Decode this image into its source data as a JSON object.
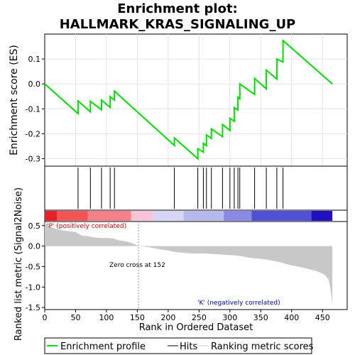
{
  "chart_data": {
    "type": "line",
    "title_line1": "Enrichment plot:",
    "title_line2": "HALLMARK_KRAS_SIGNALING_UP",
    "es_panel": {
      "ylabel": "Enrichment score (ES)",
      "ylim": [
        -0.33,
        0.2
      ],
      "yticks": [
        0.1,
        0.0,
        -0.1,
        -0.2,
        -0.3
      ],
      "ytick_labels": [
        "0.1",
        "0.0",
        "-0.1",
        "-0.2",
        "-0.3"
      ],
      "color": "#00e000",
      "grid": true,
      "x": [
        0,
        54,
        54,
        74,
        74,
        92,
        92,
        106,
        106,
        113,
        113,
        210,
        210,
        248,
        248,
        257,
        257,
        262,
        262,
        270,
        270,
        288,
        288,
        300,
        300,
        307,
        307,
        313,
        313,
        316,
        316,
        340,
        340,
        359,
        359,
        376,
        376,
        386,
        386,
        466
      ],
      "y": [
        0.0,
        -0.119,
        -0.068,
        -0.112,
        -0.07,
        -0.104,
        -0.065,
        -0.095,
        -0.051,
        -0.065,
        -0.029,
        -0.247,
        -0.217,
        -0.3,
        -0.26,
        -0.274,
        -0.238,
        -0.248,
        -0.205,
        -0.219,
        -0.18,
        -0.212,
        -0.163,
        -0.187,
        -0.138,
        -0.15,
        -0.095,
        -0.105,
        -0.053,
        -0.06,
        0.0,
        -0.042,
        0.022,
        -0.02,
        0.055,
        0.02,
        0.1,
        0.088,
        0.174,
        0.0
      ]
    },
    "hits": [
      54,
      74,
      92,
      106,
      113,
      210,
      248,
      257,
      262,
      270,
      288,
      300,
      307,
      313,
      316,
      340,
      359,
      376,
      386
    ],
    "heatmap_bands": [
      {
        "x0": 0,
        "x1": 20,
        "color": "#e8202a"
      },
      {
        "x0": 20,
        "x1": 70,
        "color": "#f25557"
      },
      {
        "x0": 70,
        "x1": 140,
        "color": "#f88088"
      },
      {
        "x0": 140,
        "x1": 175,
        "color": "#f9c3d8"
      },
      {
        "x0": 175,
        "x1": 225,
        "color": "#d7d7f5"
      },
      {
        "x0": 225,
        "x1": 290,
        "color": "#b8b8f0"
      },
      {
        "x0": 290,
        "x1": 335,
        "color": "#8a8ae6"
      },
      {
        "x0": 335,
        "x1": 432,
        "color": "#5050d6"
      },
      {
        "x0": 432,
        "x1": 466,
        "color": "#2210c0"
      }
    ],
    "metric_panel": {
      "ylabel": "Ranked list metric (Signal2Noise)",
      "ylim": [
        -1.55,
        0.6
      ],
      "yticks": [
        0.5,
        0.0,
        -0.5,
        -1.0,
        -1.5
      ],
      "ytick_labels": [
        "0.5",
        "0.0",
        "-0.5",
        "-1.0",
        "-1.5"
      ],
      "fill_color": "#c8c8c8",
      "x": [
        0,
        5,
        10,
        20,
        30,
        40,
        50,
        60,
        70,
        80,
        90,
        100,
        110,
        120,
        130,
        140,
        145,
        150,
        152,
        160,
        170,
        180,
        190,
        200,
        210,
        220,
        230,
        240,
        250,
        260,
        270,
        280,
        290,
        300,
        310,
        320,
        330,
        340,
        350,
        360,
        370,
        380,
        390,
        400,
        410,
        420,
        430,
        440,
        450,
        455,
        460,
        463,
        465,
        466
      ],
      "y": [
        0.58,
        0.52,
        0.47,
        0.41,
        0.38,
        0.36,
        0.34,
        0.26,
        0.24,
        0.21,
        0.2,
        0.2,
        0.19,
        0.14,
        0.12,
        0.08,
        0.05,
        0.02,
        0.0,
        -0.01,
        -0.03,
        -0.06,
        -0.09,
        -0.11,
        -0.14,
        -0.16,
        -0.17,
        -0.18,
        -0.18,
        -0.18,
        -0.19,
        -0.2,
        -0.21,
        -0.22,
        -0.23,
        -0.25,
        -0.28,
        -0.3,
        -0.31,
        -0.33,
        -0.36,
        -0.39,
        -0.43,
        -0.47,
        -0.5,
        -0.53,
        -0.57,
        -0.61,
        -0.67,
        -0.72,
        -0.82,
        -1.05,
        -1.3,
        -1.45
      ]
    },
    "xlabel": "Rank in Ordered Dataset",
    "xlim": [
      0,
      490
    ],
    "xticks": [
      0,
      50,
      100,
      150,
      200,
      250,
      300,
      350,
      400,
      450
    ],
    "xtick_labels": [
      "0",
      "50",
      "100",
      "150",
      "200",
      "250",
      "300",
      "350",
      "400",
      "450"
    ],
    "zero_cross": 152,
    "annotations": {
      "positive": "'P' (positively correlated)",
      "negative": "'K' (negatively correlated)",
      "zero_cross": "Zero cross at 152",
      "positive_color": "#d00000",
      "negative_color": "#0000c0"
    },
    "legend": {
      "placement": "bottom",
      "entries": [
        {
          "label": "Enrichment profile",
          "color": "#00e000"
        },
        {
          "label": "Hits",
          "color": "#000000"
        },
        {
          "label": "Ranking metric scores",
          "color": "#c8c8c8"
        }
      ]
    }
  }
}
